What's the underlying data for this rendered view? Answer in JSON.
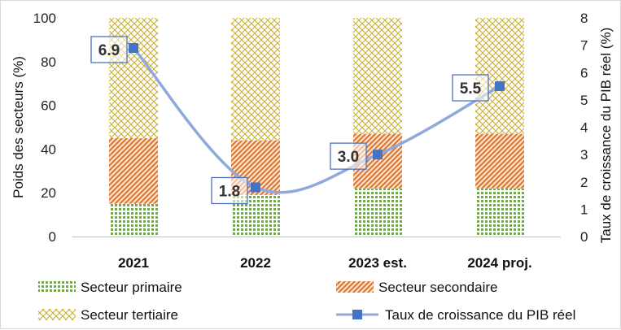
{
  "chart_data": {
    "type": "bar",
    "stacked": true,
    "categories": [
      "2021",
      "2022",
      "2023 est.",
      "2024 proj."
    ],
    "series": [
      {
        "name": "Secteur primaire",
        "values": [
          15,
          19,
          22,
          22
        ],
        "color": "#70ad47",
        "pattern": "dots",
        "axis": "left"
      },
      {
        "name": "Secteur secondaire",
        "values": [
          30,
          25,
          25,
          25
        ],
        "color": "#ed7d31",
        "pattern": "diagonal",
        "axis": "left"
      },
      {
        "name": "Secteur tertiaire",
        "values": [
          55,
          56,
          53,
          53
        ],
        "color": "#c9ad2a",
        "pattern": "crosshatch",
        "axis": "left"
      },
      {
        "name": "Taux de croissance du PIB réel",
        "type": "line",
        "values": [
          6.9,
          1.8,
          3.0,
          5.5
        ],
        "color": "#8fa9dc",
        "marker_color": "#4472c4",
        "axis": "right"
      }
    ],
    "data_labels": [
      "6.9",
      "1.8",
      "3.0",
      "5.5"
    ],
    "ylabel": "Poids des secteurs (%)",
    "y2label": "Taux de croissance du PIB réel (%)",
    "ylim": [
      0,
      100
    ],
    "y2lim": [
      0,
      8
    ],
    "yticks": [
      "0",
      "20",
      "40",
      "60",
      "80",
      "100"
    ],
    "y2ticks": [
      "0",
      "1",
      "2",
      "3",
      "4",
      "5",
      "6",
      "7",
      "8"
    ],
    "legend_position": "bottom",
    "grid": false
  }
}
